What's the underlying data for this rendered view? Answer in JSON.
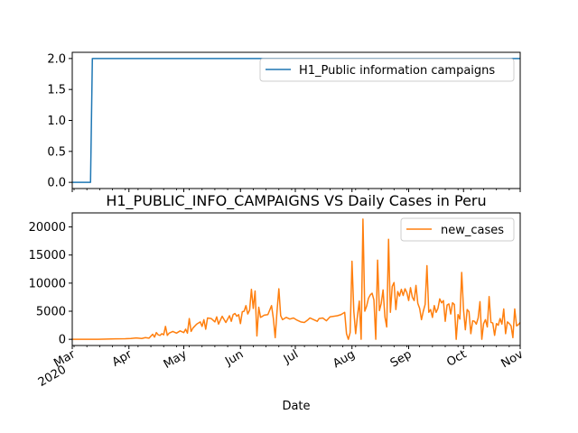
{
  "chart_data": [
    {
      "type": "line",
      "title": "",
      "xlabel": "",
      "ylabel": "",
      "ylim": [
        -0.1,
        2.1
      ],
      "yticks": [
        0.0,
        0.5,
        1.0,
        1.5,
        2.0
      ],
      "ytick_labels": [
        "0.0",
        "0.5",
        "1.0",
        "1.5",
        "2.0"
      ],
      "xlim": [
        "2020-03-01",
        "2020-11-01"
      ],
      "grid": false,
      "legend_position": "upper right",
      "series": [
        {
          "name": "H1_Public information campaigns",
          "color": "#1f77b4",
          "points": [
            [
              "2020-03-01",
              0
            ],
            [
              "2020-03-11",
              0
            ],
            [
              "2020-03-12",
              2
            ],
            [
              "2020-11-01",
              2
            ]
          ]
        }
      ]
    },
    {
      "type": "line",
      "title": "H1_PUBLIC_INFO_CAMPAIGNS VS Daily Cases in Peru",
      "xlabel": "Date",
      "ylabel": "",
      "ylim": [
        -1100,
        22500
      ],
      "yticks": [
        0,
        5000,
        10000,
        15000,
        20000
      ],
      "ytick_labels": [
        "0",
        "5000",
        "10000",
        "15000",
        "20000"
      ],
      "xlim": [
        "2020-03-01",
        "2020-11-01"
      ],
      "xtick_labels": [
        "Mar\n2020",
        "Apr",
        "May",
        "Jun",
        "Jul",
        "Aug",
        "Sep",
        "Oct",
        "Nov"
      ],
      "grid": false,
      "legend_position": "upper right",
      "series": [
        {
          "name": "new_cases",
          "color": "#ff7f0e",
          "points": [
            [
              "2020-03-01",
              0
            ],
            [
              "2020-03-06",
              1
            ],
            [
              "2020-03-10",
              5
            ],
            [
              "2020-03-15",
              10
            ],
            [
              "2020-03-20",
              50
            ],
            [
              "2020-03-25",
              80
            ],
            [
              "2020-03-30",
              100
            ],
            [
              "2020-04-02",
              150
            ],
            [
              "2020-04-05",
              250
            ],
            [
              "2020-04-08",
              150
            ],
            [
              "2020-04-10",
              300
            ],
            [
              "2020-04-12",
              200
            ],
            [
              "2020-04-14",
              900
            ],
            [
              "2020-04-15",
              400
            ],
            [
              "2020-04-16",
              1200
            ],
            [
              "2020-04-17",
              800
            ],
            [
              "2020-04-18",
              700
            ],
            [
              "2020-04-19",
              1000
            ],
            [
              "2020-04-20",
              800
            ],
            [
              "2020-04-21",
              2300
            ],
            [
              "2020-04-22",
              700
            ],
            [
              "2020-04-23",
              1100
            ],
            [
              "2020-04-25",
              1400
            ],
            [
              "2020-04-27",
              1100
            ],
            [
              "2020-04-29",
              1500
            ],
            [
              "2020-05-01",
              1200
            ],
            [
              "2020-05-02",
              1800
            ],
            [
              "2020-05-03",
              1100
            ],
            [
              "2020-05-04",
              3700
            ],
            [
              "2020-05-05",
              1400
            ],
            [
              "2020-05-06",
              2000
            ],
            [
              "2020-05-08",
              2700
            ],
            [
              "2020-05-10",
              3100
            ],
            [
              "2020-05-11",
              2300
            ],
            [
              "2020-05-12",
              3500
            ],
            [
              "2020-05-13",
              1800
            ],
            [
              "2020-05-14",
              3800
            ],
            [
              "2020-05-16",
              3700
            ],
            [
              "2020-05-18",
              3100
            ],
            [
              "2020-05-19",
              4000
            ],
            [
              "2020-05-20",
              2700
            ],
            [
              "2020-05-22",
              4100
            ],
            [
              "2020-05-24",
              3000
            ],
            [
              "2020-05-26",
              4200
            ],
            [
              "2020-05-27",
              3200
            ],
            [
              "2020-05-28",
              4400
            ],
            [
              "2020-05-29",
              4600
            ],
            [
              "2020-05-30",
              4100
            ],
            [
              "2020-05-31",
              4400
            ],
            [
              "2020-06-01",
              2800
            ],
            [
              "2020-06-02",
              4900
            ],
            [
              "2020-06-03",
              5000
            ],
            [
              "2020-06-04",
              6000
            ],
            [
              "2020-06-05",
              4500
            ],
            [
              "2020-06-06",
              5200
            ],
            [
              "2020-06-07",
              8900
            ],
            [
              "2020-06-08",
              5500
            ],
            [
              "2020-06-09",
              8600
            ],
            [
              "2020-06-10",
              600
            ],
            [
              "2020-06-11",
              5700
            ],
            [
              "2020-06-12",
              3900
            ],
            [
              "2020-06-14",
              4300
            ],
            [
              "2020-06-16",
              4400
            ],
            [
              "2020-06-17",
              5200
            ],
            [
              "2020-06-18",
              6000
            ],
            [
              "2020-06-19",
              3700
            ],
            [
              "2020-06-20",
              300
            ],
            [
              "2020-06-21",
              5000
            ],
            [
              "2020-06-22",
              9000
            ],
            [
              "2020-06-23",
              4200
            ],
            [
              "2020-06-24",
              3500
            ],
            [
              "2020-06-26",
              3900
            ],
            [
              "2020-06-28",
              3600
            ],
            [
              "2020-06-30",
              3800
            ],
            [
              "2020-07-02",
              3400
            ],
            [
              "2020-07-04",
              3100
            ],
            [
              "2020-07-06",
              3000
            ],
            [
              "2020-07-08",
              3500
            ],
            [
              "2020-07-09",
              3800
            ],
            [
              "2020-07-11",
              3500
            ],
            [
              "2020-07-13",
              3200
            ],
            [
              "2020-07-14",
              3700
            ],
            [
              "2020-07-16",
              3800
            ],
            [
              "2020-07-18",
              3300
            ],
            [
              "2020-07-20",
              4000
            ],
            [
              "2020-07-22",
              4100
            ],
            [
              "2020-07-24",
              4200
            ],
            [
              "2020-07-26",
              4400
            ],
            [
              "2020-07-28",
              4800
            ],
            [
              "2020-07-29",
              1000
            ],
            [
              "2020-07-30",
              0
            ],
            [
              "2020-07-31",
              1200
            ],
            [
              "2020-08-01",
              13900
            ],
            [
              "2020-08-02",
              5000
            ],
            [
              "2020-08-03",
              1000
            ],
            [
              "2020-08-04",
              4200
            ],
            [
              "2020-08-05",
              6800
            ],
            [
              "2020-08-06",
              0
            ],
            [
              "2020-08-07",
              21400
            ],
            [
              "2020-08-08",
              5000
            ],
            [
              "2020-08-09",
              5900
            ],
            [
              "2020-08-10",
              7300
            ],
            [
              "2020-08-11",
              7900
            ],
            [
              "2020-08-12",
              8200
            ],
            [
              "2020-08-13",
              7000
            ],
            [
              "2020-08-14",
              0
            ],
            [
              "2020-08-15",
              14100
            ],
            [
              "2020-08-16",
              5100
            ],
            [
              "2020-08-17",
              6400
            ],
            [
              "2020-08-18",
              8800
            ],
            [
              "2020-08-19",
              4000
            ],
            [
              "2020-08-20",
              2200
            ],
            [
              "2020-08-21",
              17800
            ],
            [
              "2020-08-22",
              4800
            ],
            [
              "2020-08-23",
              9400
            ],
            [
              "2020-08-24",
              10100
            ],
            [
              "2020-08-25",
              5300
            ],
            [
              "2020-08-26",
              8500
            ],
            [
              "2020-08-27",
              7700
            ],
            [
              "2020-08-28",
              8900
            ],
            [
              "2020-08-29",
              7800
            ],
            [
              "2020-08-30",
              9000
            ],
            [
              "2020-08-31",
              8300
            ],
            [
              "2020-09-01",
              6900
            ],
            [
              "2020-09-02",
              9200
            ],
            [
              "2020-09-03",
              7500
            ],
            [
              "2020-09-04",
              6900
            ],
            [
              "2020-09-05",
              9600
            ],
            [
              "2020-09-06",
              6400
            ],
            [
              "2020-09-07",
              5500
            ],
            [
              "2020-09-08",
              3500
            ],
            [
              "2020-09-09",
              5000
            ],
            [
              "2020-09-10",
              6200
            ],
            [
              "2020-09-11",
              13100
            ],
            [
              "2020-09-12",
              4800
            ],
            [
              "2020-09-13",
              5300
            ],
            [
              "2020-09-14",
              3900
            ],
            [
              "2020-09-15",
              6000
            ],
            [
              "2020-09-16",
              4800
            ],
            [
              "2020-09-17",
              5500
            ],
            [
              "2020-09-18",
              7200
            ],
            [
              "2020-09-19",
              6500
            ],
            [
              "2020-09-20",
              6900
            ],
            [
              "2020-09-21",
              3200
            ],
            [
              "2020-09-22",
              6100
            ],
            [
              "2020-09-23",
              6300
            ],
            [
              "2020-09-24",
              4500
            ],
            [
              "2020-09-25",
              6500
            ],
            [
              "2020-09-26",
              6200
            ],
            [
              "2020-09-27",
              0
            ],
            [
              "2020-09-28",
              4400
            ],
            [
              "2020-09-29",
              3600
            ],
            [
              "2020-09-30",
              11900
            ],
            [
              "2020-10-01",
              5300
            ],
            [
              "2020-10-02",
              1700
            ],
            [
              "2020-10-03",
              5300
            ],
            [
              "2020-10-04",
              4900
            ],
            [
              "2020-10-05",
              1000
            ],
            [
              "2020-10-06",
              3300
            ],
            [
              "2020-10-07",
              3200
            ],
            [
              "2020-10-08",
              2700
            ],
            [
              "2020-10-09",
              3800
            ],
            [
              "2020-10-10",
              6700
            ],
            [
              "2020-10-11",
              0
            ],
            [
              "2020-10-12",
              2800
            ],
            [
              "2020-10-13",
              3500
            ],
            [
              "2020-10-14",
              2200
            ],
            [
              "2020-10-15",
              7600
            ],
            [
              "2020-10-16",
              3000
            ],
            [
              "2020-10-17",
              2900
            ],
            [
              "2020-10-18",
              700
            ],
            [
              "2020-10-19",
              2800
            ],
            [
              "2020-10-20",
              2500
            ],
            [
              "2020-10-21",
              3700
            ],
            [
              "2020-10-22",
              2700
            ],
            [
              "2020-10-23",
              5400
            ],
            [
              "2020-10-24",
              1000
            ],
            [
              "2020-10-25",
              3100
            ],
            [
              "2020-10-26",
              2800
            ],
            [
              "2020-10-27",
              2400
            ],
            [
              "2020-10-28",
              300
            ],
            [
              "2020-10-29",
              5400
            ],
            [
              "2020-10-30",
              2400
            ],
            [
              "2020-10-31",
              2600
            ],
            [
              "2020-11-01",
              3000
            ],
            [
              "2020-11-02",
              2200
            ]
          ]
        }
      ]
    }
  ]
}
